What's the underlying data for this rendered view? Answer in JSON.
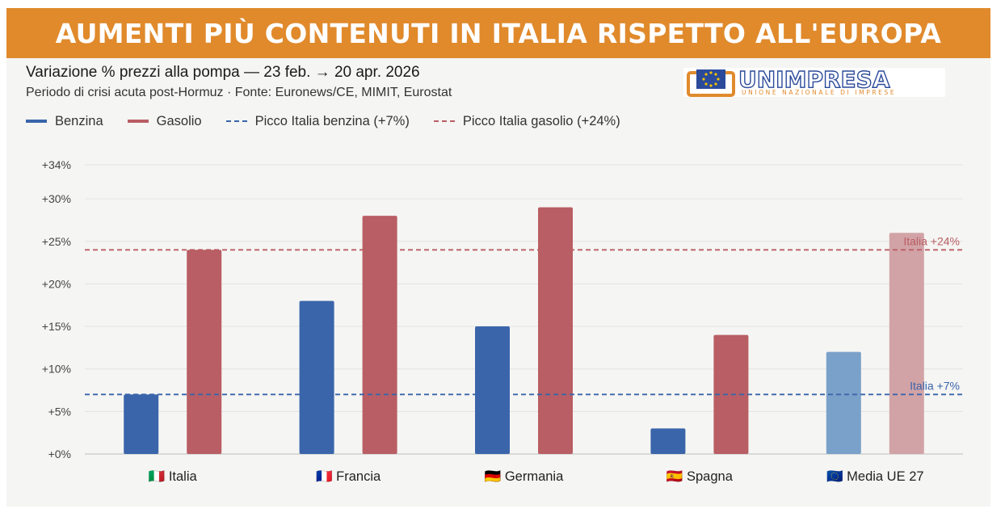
{
  "banner": {
    "title": "AUMENTI PIÙ CONTENUTI IN ITALIA RISPETTO ALL'EUROPA"
  },
  "header": {
    "title": "Variazione % prezzi alla pompa — 23 feb. → 20 apr. 2026",
    "subtitle": "Periodo di crisi acuta post-Hormuz · Fonte: Euronews/CE, MIMIT, Eurostat"
  },
  "logo": {
    "name": "UNIMPRESA",
    "tagline": "UNIONE NAZIONALE DI IMPRESE"
  },
  "colors": {
    "benzina": "#3a65ab",
    "gasolio": "#b95e64",
    "benzina_light": "#7aa1c9",
    "gasolio_light": "#d2a3a6",
    "banner": "#e08a2c"
  },
  "chart_data": {
    "type": "bar",
    "categories": [
      "Italia",
      "Francia",
      "Germania",
      "Spagna",
      "Media UE 27"
    ],
    "category_flags": [
      "🇮🇹",
      "🇫🇷",
      "🇩🇪",
      "🇪🇸",
      "🇪🇺"
    ],
    "series": [
      {
        "name": "Benzina",
        "values": [
          7,
          18,
          15,
          3,
          12
        ]
      },
      {
        "name": "Gasolio",
        "values": [
          24,
          28,
          29,
          14,
          26
        ]
      }
    ],
    "legend": [
      "Benzina",
      "Gasolio",
      "Picco Italia benzina (+7%)",
      "Picco Italia gasolio (+24%)"
    ],
    "legend_position": "top-left",
    "reference_lines": [
      {
        "name": "Picco Italia benzina (+7%)",
        "value": 7,
        "label": "Italia +7%"
      },
      {
        "name": "Picco Italia gasolio (+24%)",
        "value": 24,
        "label": "Italia +24%"
      }
    ],
    "y_ticks": [
      "+0%",
      "+5%",
      "+10%",
      "+15%",
      "+20%",
      "+25%",
      "+30%",
      "+34%"
    ],
    "y_tick_values": [
      0,
      5,
      10,
      15,
      20,
      25,
      30,
      34
    ],
    "ylim": [
      0,
      34
    ],
    "grid": true,
    "highlight_category": "Media UE 27"
  }
}
